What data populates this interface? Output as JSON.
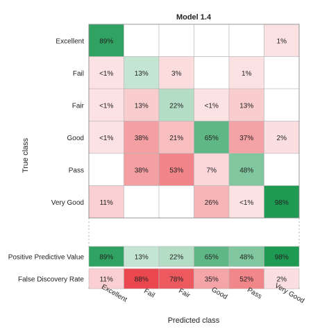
{
  "chart_data": {
    "type": "heatmap",
    "title": "Model 1.4",
    "xlabel": "Predicted class",
    "ylabel": "True class",
    "classes": [
      "Excellent",
      "Fail",
      "Fair",
      "Good",
      "Pass",
      "Very Good"
    ],
    "col_tick_labels": [
      "Excellent",
      "Fail",
      "Fair",
      "Good",
      "Pass",
      "Very Good"
    ],
    "row_tick_labels": [
      "Excellent",
      "Fail",
      "Fair",
      "Good",
      "Pass",
      "Very Good"
    ],
    "cells": [
      [
        "89%",
        "",
        "",
        "",
        "",
        "1%"
      ],
      [
        "<1%",
        "13%",
        "3%",
        "",
        "1%",
        ""
      ],
      [
        "<1%",
        "13%",
        "22%",
        "<1%",
        "13%",
        ""
      ],
      [
        "<1%",
        "38%",
        "21%",
        "65%",
        "37%",
        "2%"
      ],
      [
        "",
        "38%",
        "53%",
        "7%",
        "48%",
        ""
      ],
      [
        "11%",
        "",
        "",
        "26%",
        "<1%",
        "98%"
      ]
    ],
    "cell_values": [
      [
        89,
        null,
        null,
        null,
        null,
        1
      ],
      [
        0.5,
        13,
        3,
        null,
        1,
        null
      ],
      [
        0.5,
        13,
        22,
        0.5,
        13,
        null
      ],
      [
        0.5,
        38,
        21,
        65,
        37,
        2
      ],
      [
        null,
        38,
        53,
        7,
        48,
        null
      ],
      [
        11,
        null,
        null,
        26,
        0.5,
        98
      ]
    ],
    "summary_rows": [
      {
        "label": "Positive Predictive Value",
        "cells": [
          "89%",
          "13%",
          "22%",
          "65%",
          "48%",
          "98%"
        ],
        "values": [
          89,
          13,
          22,
          65,
          48,
          98
        ],
        "good": true
      },
      {
        "label": "False Discovery Rate",
        "cells": [
          "11%",
          "88%",
          "78%",
          "35%",
          "52%",
          "2%"
        ],
        "values": [
          11,
          88,
          78,
          35,
          52,
          2
        ],
        "good": false
      }
    ],
    "colors": {
      "correct": "#1a9850",
      "incorrect": "#e8333a",
      "neutral": "#ffffff",
      "grid": "#b8b8b8"
    }
  }
}
